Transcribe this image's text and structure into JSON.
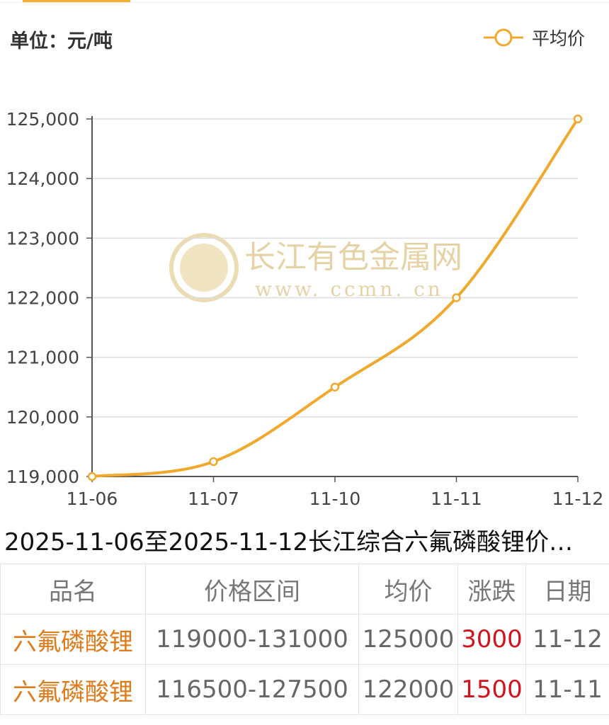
{
  "header": {
    "unit": "单位：元/吨"
  },
  "colors": {
    "line": "#f0a92c",
    "grid": "#dddddd",
    "axis": "#555555",
    "change_up": "#d0141e",
    "product": "#e07b1a"
  },
  "watermark": {
    "line1": "长江有色金属网",
    "line2": "www. ccmn. cn"
  },
  "chart_data": {
    "type": "line",
    "categories": [
      "11-06",
      "11-07",
      "11-10",
      "11-11",
      "11-12"
    ],
    "series": [
      {
        "name": "平均价",
        "values": [
          119000,
          119250,
          120500,
          122000,
          125000
        ]
      }
    ],
    "ylim": [
      119000,
      125000
    ],
    "yticks": [
      {
        "value": 119000,
        "label": "119,000"
      },
      {
        "value": 120000,
        "label": "120,000"
      },
      {
        "value": 121000,
        "label": "121,000"
      },
      {
        "value": 122000,
        "label": "122,000"
      },
      {
        "value": 123000,
        "label": "123,000"
      },
      {
        "value": 124000,
        "label": "124,000"
      },
      {
        "value": 125000,
        "label": "125,000"
      }
    ],
    "grid": true,
    "legend_position": "top-right",
    "title": "2025-11-06至2025-11-12长江综合六氟磷酸锂价…"
  },
  "table": {
    "headers": [
      "品名",
      "价格区间",
      "均价",
      "涨跌",
      "日期"
    ],
    "rows": [
      {
        "name": "六氟磷酸锂",
        "range": "119000-131000",
        "avg": "125000",
        "change": "3000",
        "date": "11-12"
      },
      {
        "name": "六氟磷酸锂",
        "range": "116500-127500",
        "avg": "122000",
        "change": "1500",
        "date": "11-11"
      }
    ]
  }
}
